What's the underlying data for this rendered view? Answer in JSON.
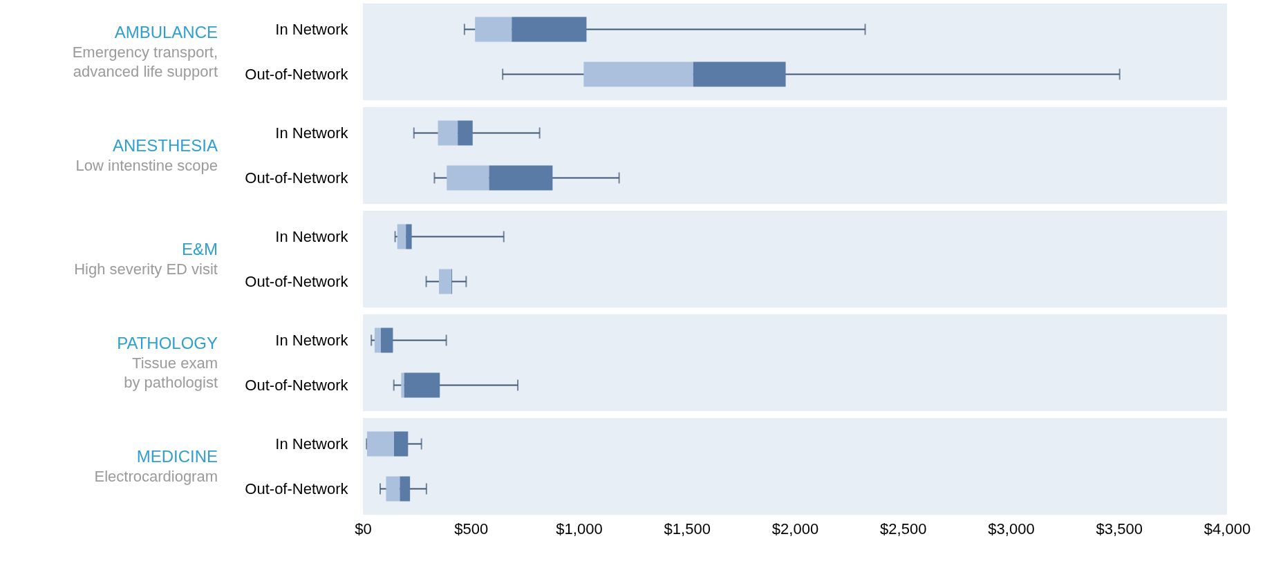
{
  "chart_data": [
    {
      "type": "box",
      "orientation": "horizontal",
      "title": "AMBULANCE",
      "subtitle": "Emergency transport,\nadvanced life support",
      "categories": [
        "In Network",
        "Out-of-Network"
      ],
      "tick_labels": "y",
      "xlim": [
        0,
        4000
      ],
      "colors": [
        "#5a7ba6",
        "#5a7ba6"
      ],
      "series": [
        {
          "color": "#abc0dc",
          "boxes": [
            {
              "low": 470,
              "q1": 519,
              "median": 689,
              "q3": 1035,
              "high": 2325
            },
            {
              "low": 647,
              "q1": 1022,
              "median": 1529,
              "q3": 1957,
              "high": 3503
            }
          ]
        }
      ]
    },
    {
      "type": "box",
      "orientation": "horizontal",
      "title": "ANESTHESIA",
      "subtitle": "Low intenstine scope",
      "categories": [
        "In Network",
        "Out-of-Network"
      ],
      "tick_labels": "y",
      "xlim": [
        0,
        4000
      ],
      "colors": [
        "#5a7ba6",
        "#5a7ba6"
      ],
      "series": [
        {
          "color": "#abc0dc",
          "boxes": [
            {
              "low": 236,
              "q1": 347,
              "median": 439,
              "q3": 508,
              "high": 818
            },
            {
              "low": 331,
              "q1": 388,
              "median": 584,
              "q3": 878,
              "high": 1186
            }
          ]
        }
      ]
    },
    {
      "type": "box",
      "orientation": "horizontal",
      "title": "E&M",
      "subtitle": "High severity ED visit",
      "categories": [
        "In Network",
        "Out-of-Network"
      ],
      "tick_labels": "y",
      "xlim": [
        0,
        4000
      ],
      "colors": [
        "#5a7ba6",
        "#5a7ba6"
      ],
      "series": [
        {
          "color": "#abc0dc",
          "boxes": [
            {
              "low": 149,
              "q1": 159,
              "median": 199,
              "q3": 226,
              "high": 652
            },
            {
              "low": 293,
              "q1": 352,
              "median": 410,
              "q3": 413,
              "high": 478
            }
          ]
        }
      ]
    },
    {
      "type": "box",
      "orientation": "horizontal",
      "title": "PATHOLOGY",
      "subtitle": "Tissue exam\nby pathologist",
      "categories": [
        "In Network",
        "Out-of-Network"
      ],
      "tick_labels": "y",
      "xlim": [
        0,
        4000
      ],
      "colors": [
        "#5a7ba6",
        "#5a7ba6"
      ],
      "series": [
        {
          "color": "#abc0dc",
          "boxes": [
            {
              "low": 39,
              "q1": 54,
              "median": 83,
              "q3": 139,
              "high": 386
            },
            {
              "low": 143,
              "q1": 177,
              "median": 191,
              "q3": 356,
              "high": 717
            }
          ]
        }
      ]
    },
    {
      "type": "box",
      "orientation": "horizontal",
      "title": "MEDICINE",
      "subtitle": "Electrocardiogram",
      "categories": [
        "In Network",
        "Out-of-Network"
      ],
      "xlim": [
        0,
        4000
      ],
      "xticks": [
        {
          "value": 0,
          "label": "$0"
        },
        {
          "value": 500,
          "label": "$500"
        },
        {
          "value": 1000,
          "label": "$1,000"
        },
        {
          "value": 1500,
          "label": "$1,500"
        },
        {
          "value": 2000,
          "label": "$2,000"
        },
        {
          "value": 2500,
          "label": "$2,500"
        },
        {
          "value": 3000,
          "label": "$3,000"
        },
        {
          "value": 3500,
          "label": "$3,500"
        },
        {
          "value": 4000,
          "label": "$4,000"
        }
      ],
      "colors": [
        "#5a7ba6",
        "#5a7ba6"
      ],
      "series": [
        {
          "color": "#abc0dc",
          "boxes": [
            {
              "low": 17,
              "q1": 19,
              "median": 144,
              "q3": 209,
              "high": 271
            },
            {
              "low": 80,
              "q1": 107,
              "median": 171,
              "q3": 218,
              "high": 294
            }
          ]
        }
      ]
    }
  ]
}
